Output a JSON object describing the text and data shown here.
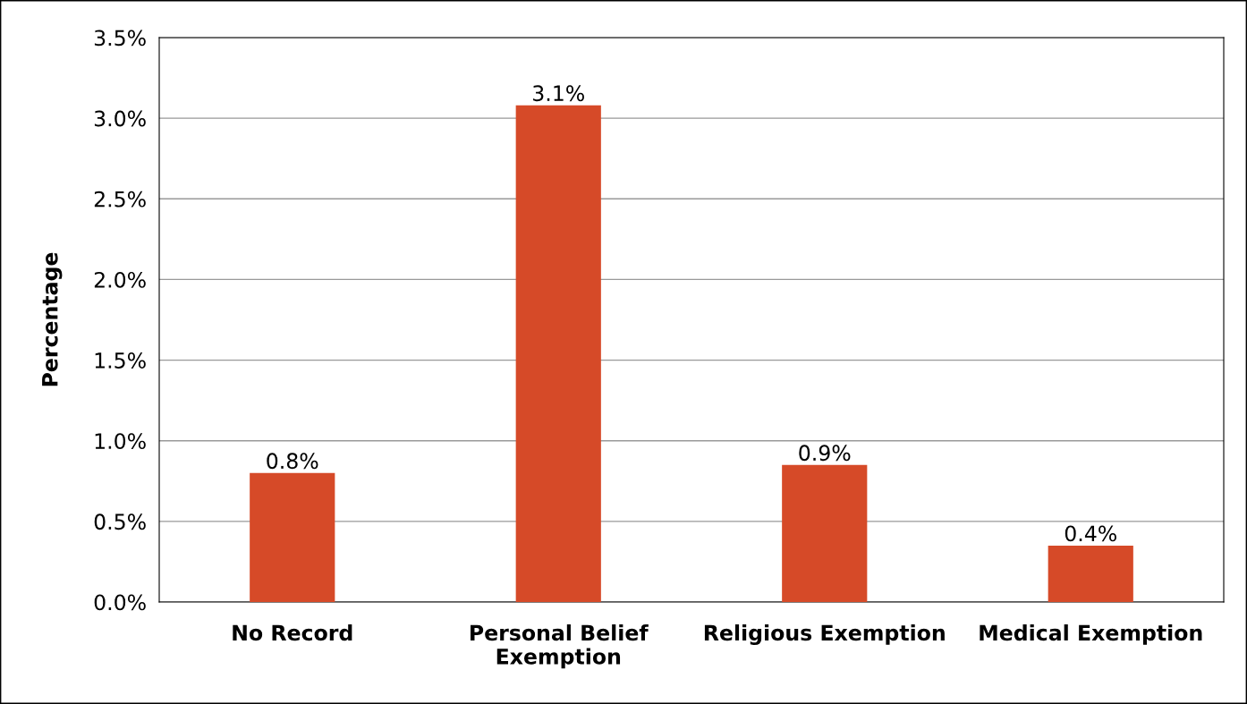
{
  "chart_data": {
    "type": "bar",
    "ylabel": "Percentage",
    "categories": [
      "No Record",
      "Personal Belief\nExemption",
      "Religious Exemption",
      "Medical Exemption"
    ],
    "values": [
      0.8,
      3.08,
      0.85,
      0.35
    ],
    "value_labels": [
      "0.8%",
      "3.1%",
      "0.9%",
      "0.4%"
    ],
    "color": "#d64a28",
    "ylim": [
      0,
      3.5
    ],
    "yticks": [
      {
        "value": 0,
        "label": "0.0%"
      },
      {
        "value": 0.5,
        "label": "0.5%"
      },
      {
        "value": 1.0,
        "label": "1.0%"
      },
      {
        "value": 1.5,
        "label": "1.5%"
      },
      {
        "value": 2.0,
        "label": "2.0%"
      },
      {
        "value": 2.5,
        "label": "2.5%"
      },
      {
        "value": 3.0,
        "label": "3.0%"
      },
      {
        "value": 3.5,
        "label": "3.5%"
      }
    ],
    "grid": "y"
  }
}
